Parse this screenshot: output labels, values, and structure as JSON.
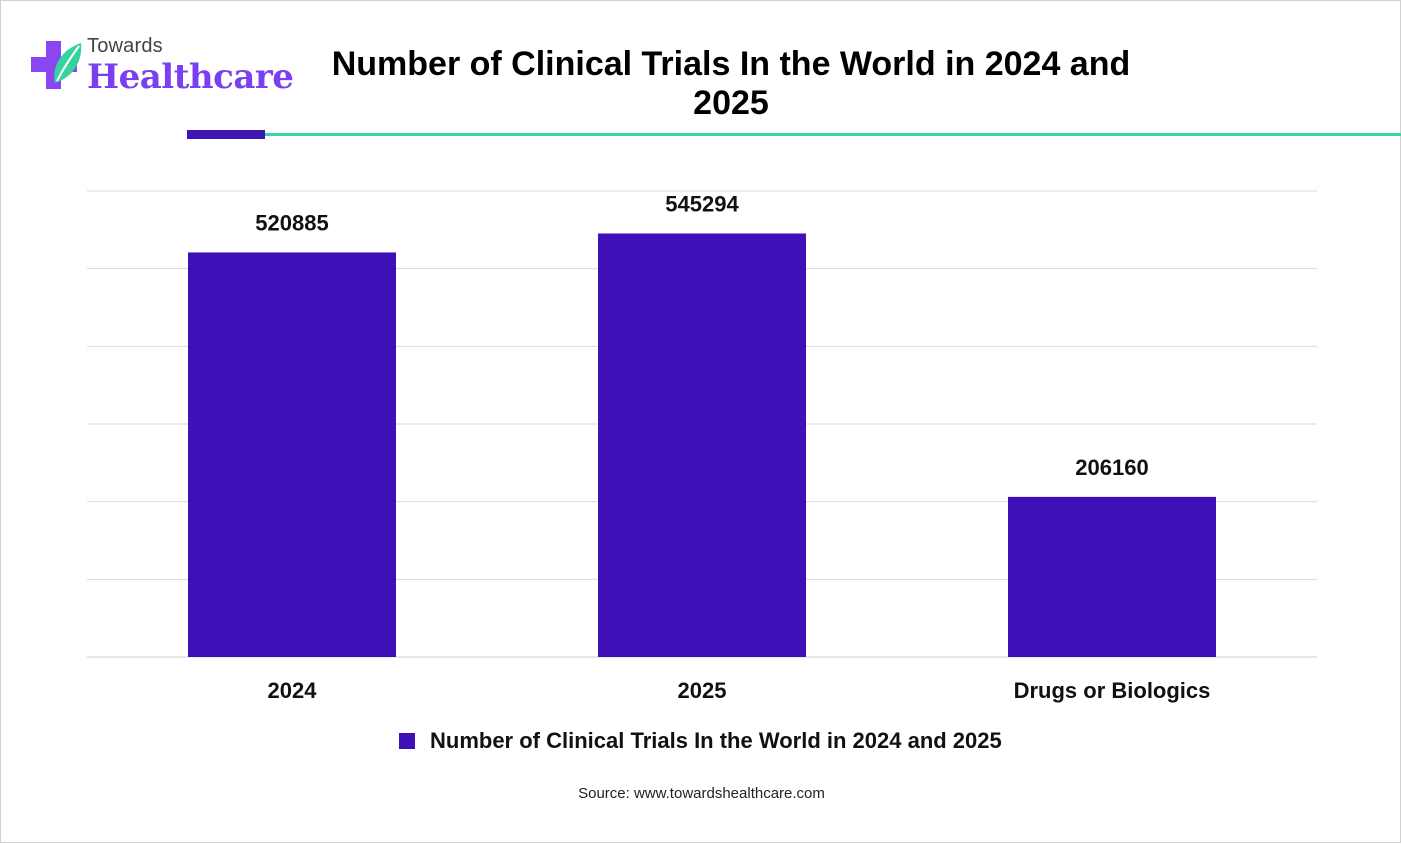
{
  "header": {
    "logo_line1": "Towards",
    "logo_line2": "Healthcare",
    "title": "Number of Clinical Trials In the World in 2024 and 2025"
  },
  "colors": {
    "bar": "#3d10b8",
    "accent_dark": "#3d16b3",
    "accent_teal": "#3cd6a0",
    "logo_purple": "#7b3ff2"
  },
  "chart_data": {
    "type": "bar",
    "categories": [
      "2024",
      "2025",
      "Drugs or Biologics"
    ],
    "series": [
      {
        "name": "Number of Clinical Trials In the World in 2024 and 2025",
        "values": [
          520885,
          545294,
          206160
        ]
      }
    ],
    "data_labels": [
      "520885",
      "545294",
      "206160"
    ],
    "ylim": [
      0,
      600000
    ],
    "grid": true,
    "legend_position": "bottom"
  },
  "footer": {
    "source": "Source: www.towardshealthcare.com"
  }
}
